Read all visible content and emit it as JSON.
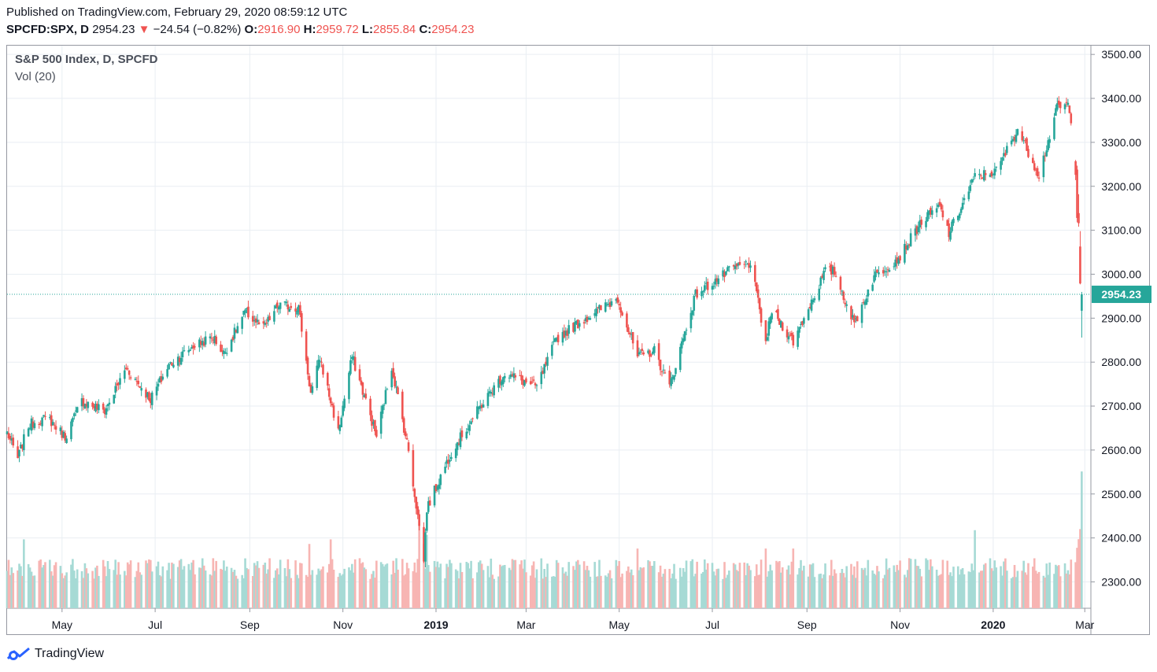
{
  "header": {
    "published": "Published on TradingView.com, February 29, 2020 08:59:12 UTC",
    "symbol": "SPCFD:SPX, D",
    "last": "2954.23",
    "arrow": "▼",
    "change": "−24.54 (−0.82%)",
    "o_label": "O:",
    "o_value": "2916.90",
    "h_label": "H:",
    "h_value": "2959.72",
    "l_label": "L:",
    "l_value": "2855.84",
    "c_label": "C:",
    "c_value": "2954.23"
  },
  "legend": {
    "title": "S&P 500 Index, D, SPCFD",
    "volume": "Vol (20)"
  },
  "brand": {
    "name": "TradingView"
  },
  "colors": {
    "up": "#26a69a",
    "down": "#ef5350",
    "grid": "#e9eef3",
    "axis": "#9598a1",
    "last_price": "#26a69a"
  },
  "chart_data": {
    "type": "candlestick",
    "title": "S&P 500 Index, D, SPCFD",
    "price_axis": {
      "ticks": [
        "3500.00",
        "3400.00",
        "3300.00",
        "3200.00",
        "3100.00",
        "3000.00",
        "2900.00",
        "2800.00",
        "2700.00",
        "2600.00",
        "2500.00",
        "2400.00",
        "2300.00"
      ],
      "range": [
        2240,
        3520
      ]
    },
    "x_axis": {
      "range": [
        "2018-03-26",
        "2020-03-05"
      ],
      "ticks": [
        {
          "label": "May",
          "date": "2018-05-01",
          "bold": false
        },
        {
          "label": "Jul",
          "date": "2018-07-01",
          "bold": false
        },
        {
          "label": "Sep",
          "date": "2018-09-01",
          "bold": false
        },
        {
          "label": "Nov",
          "date": "2018-11-01",
          "bold": false
        },
        {
          "label": "2019",
          "date": "2019-01-01",
          "bold": true
        },
        {
          "label": "Mar",
          "date": "2019-03-01",
          "bold": false
        },
        {
          "label": "May",
          "date": "2019-05-01",
          "bold": false
        },
        {
          "label": "Jul",
          "date": "2019-07-01",
          "bold": false
        },
        {
          "label": "Sep",
          "date": "2019-09-01",
          "bold": false
        },
        {
          "label": "Nov",
          "date": "2019-11-01",
          "bold": false
        },
        {
          "label": "2020",
          "date": "2020-01-01",
          "bold": true
        },
        {
          "label": "Mar",
          "date": "2020-03-01",
          "bold": false
        }
      ]
    },
    "last_price": 2954.23,
    "last_price_label": "2954.23",
    "close_path": [
      [
        "2018-03-26",
        2640
      ],
      [
        "2018-04-02",
        2581
      ],
      [
        "2018-04-09",
        2656
      ],
      [
        "2018-04-16",
        2670
      ],
      [
        "2018-04-23",
        2669
      ],
      [
        "2018-05-03",
        2630
      ],
      [
        "2018-05-14",
        2712
      ],
      [
        "2018-05-29",
        2689
      ],
      [
        "2018-06-12",
        2786
      ],
      [
        "2018-06-28",
        2716
      ],
      [
        "2018-07-10",
        2793
      ],
      [
        "2018-07-26",
        2837
      ],
      [
        "2018-08-08",
        2857
      ],
      [
        "2018-08-15",
        2819
      ],
      [
        "2018-08-29",
        2914
      ],
      [
        "2018-09-10",
        2877
      ],
      [
        "2018-09-20",
        2930
      ],
      [
        "2018-10-03",
        2925
      ],
      [
        "2018-10-11",
        2728
      ],
      [
        "2018-10-17",
        2809
      ],
      [
        "2018-10-29",
        2641
      ],
      [
        "2018-11-07",
        2813
      ],
      [
        "2018-11-23",
        2632
      ],
      [
        "2018-12-03",
        2790
      ],
      [
        "2018-12-14",
        2599
      ],
      [
        "2018-12-24",
        2351
      ],
      [
        "2018-12-26",
        2467
      ],
      [
        "2019-01-11",
        2596
      ],
      [
        "2019-01-31",
        2704
      ],
      [
        "2019-02-15",
        2775
      ],
      [
        "2019-03-08",
        2743
      ],
      [
        "2019-03-21",
        2854
      ],
      [
        "2019-04-12",
        2907
      ],
      [
        "2019-04-30",
        2945
      ],
      [
        "2019-05-13",
        2811
      ],
      [
        "2019-05-24",
        2826
      ],
      [
        "2019-06-03",
        2744
      ],
      [
        "2019-06-20",
        2954
      ],
      [
        "2019-07-15",
        3014
      ],
      [
        "2019-07-26",
        3025
      ],
      [
        "2019-08-05",
        2844
      ],
      [
        "2019-08-09",
        2918
      ],
      [
        "2019-08-23",
        2847
      ],
      [
        "2019-09-13",
        3007
      ],
      [
        "2019-09-19",
        3006
      ],
      [
        "2019-10-02",
        2887
      ],
      [
        "2019-10-15",
        2995
      ],
      [
        "2019-10-31",
        3037
      ],
      [
        "2019-11-15",
        3120
      ],
      [
        "2019-11-27",
        3153
      ],
      [
        "2019-12-03",
        3093
      ],
      [
        "2019-12-20",
        3221
      ],
      [
        "2020-01-03",
        3235
      ],
      [
        "2020-01-17",
        3330
      ],
      [
        "2020-01-31",
        3226
      ],
      [
        "2020-02-12",
        3379
      ],
      [
        "2020-02-19",
        3386
      ],
      [
        "2020-02-21",
        3338
      ],
      [
        "2020-02-24",
        3226
      ],
      [
        "2020-02-25",
        3128
      ],
      [
        "2020-02-26",
        3116
      ],
      [
        "2020-02-27",
        2979
      ],
      [
        "2020-02-28",
        2954
      ]
    ],
    "final_candles": [
      {
        "date": "2020-02-24",
        "open": 3257,
        "high": 3260,
        "low": 3214,
        "close": 3226
      },
      {
        "date": "2020-02-25",
        "open": 3238,
        "high": 3247,
        "low": 3118,
        "close": 3128
      },
      {
        "date": "2020-02-26",
        "open": 3139,
        "high": 3182,
        "low": 3108,
        "close": 3116
      },
      {
        "date": "2020-02-27",
        "open": 3063,
        "high": 3098,
        "low": 2977,
        "close": 2979
      },
      {
        "date": "2020-02-28",
        "open": 2916.9,
        "high": 2959.72,
        "low": 2855.84,
        "close": 2954.23
      }
    ],
    "volume_note": "Volume bars: typical baseline with spikes in Feb 2018, Oct 2018, Dec 2018, Aug 2019 and late Feb 2020 (largest on 2020-02-28)."
  }
}
